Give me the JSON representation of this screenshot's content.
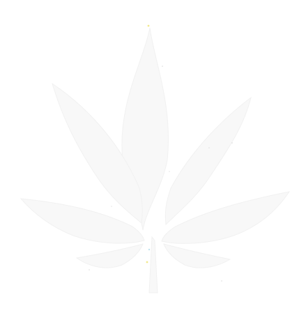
{
  "image": {
    "background_color": "#ffffff",
    "subject": "leaf-silhouette",
    "subject_color": "#f7f7f7",
    "speck_colors": [
      "#f2e98c",
      "#bfe3f0",
      "#dcdcdc"
    ]
  }
}
